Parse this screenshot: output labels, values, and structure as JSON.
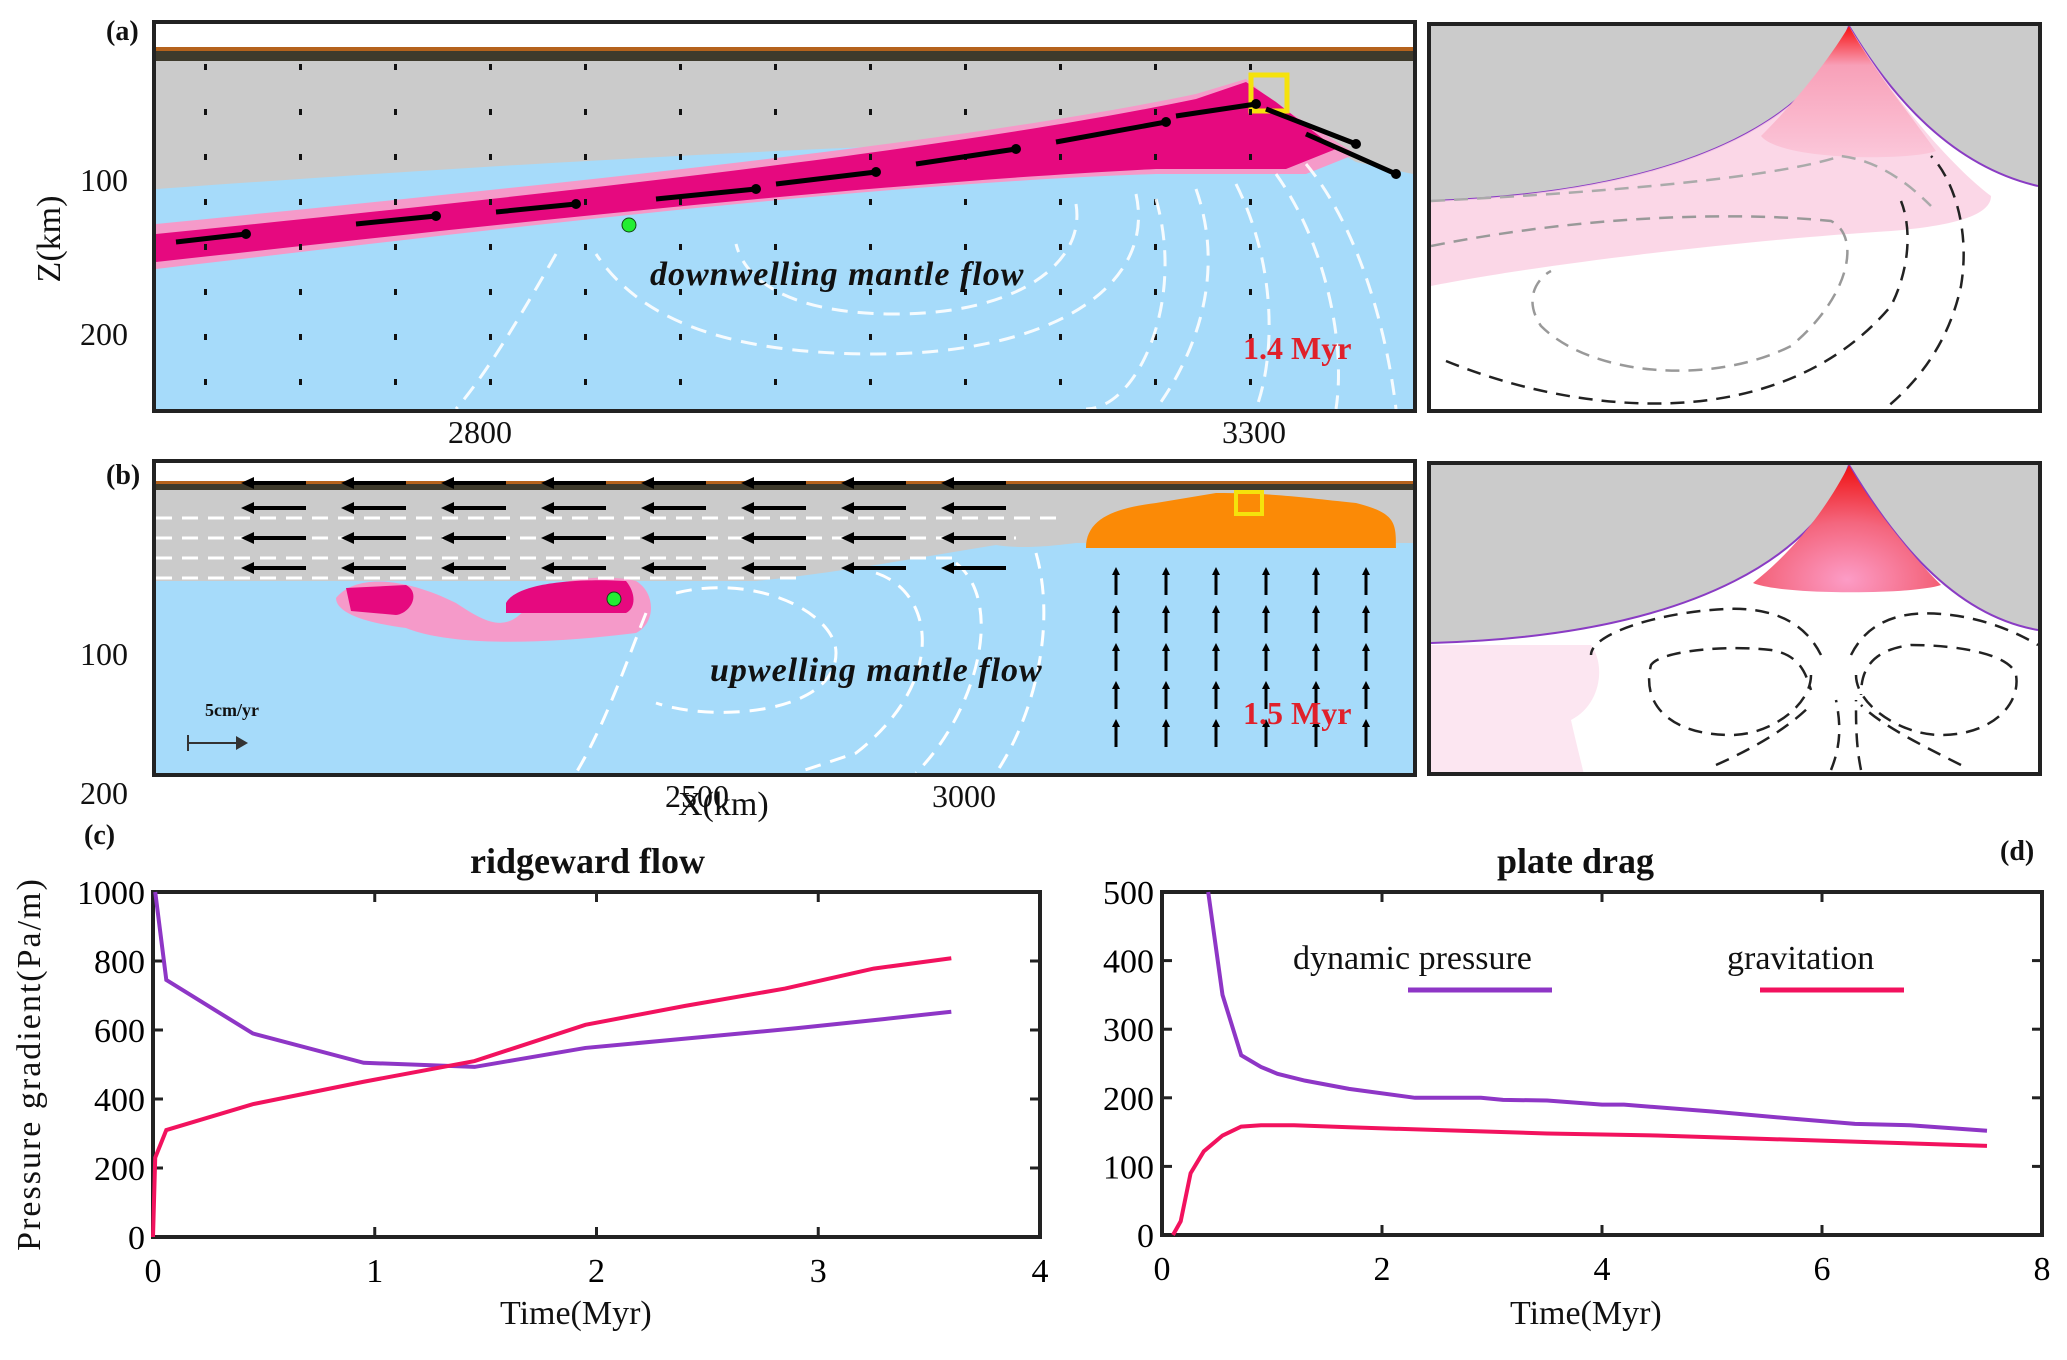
{
  "figure": {
    "panels": {
      "a": {
        "label": "(a)",
        "annotation": "downwelling mantle flow",
        "time": "1.4 Myr",
        "ylabel": "Z(km)",
        "yticks": [
          "100",
          "200"
        ],
        "top_xticks": [
          "2800",
          "3300"
        ]
      },
      "b": {
        "label": "(b)",
        "annotation": "upwelling mantle flow",
        "time": "1.5 Myr",
        "yticks": [
          "100",
          "200"
        ],
        "xticks": [
          "2500",
          "3000"
        ],
        "xlabel": "X(km)",
        "scale_label": "5cm/yr"
      },
      "c": {
        "label": "(c)"
      },
      "d": {
        "label": "(d)"
      }
    },
    "colors": {
      "mantle": "#a6dbfa",
      "lithosphere": "#cbcbcb",
      "crust_dark": "#3e3a2c",
      "crust_brown": "#b5621c",
      "slab": "#e6097f",
      "slab_halo": "#f59ac9",
      "melt_orange": "#fb8a06",
      "marker_green": "#22ee33",
      "highlight_box": "#f5e20c",
      "dynamic_pressure": "#8e36c6",
      "gravitation": "#f2125e",
      "time_label": "#e0202a"
    }
  },
  "chart_data": [
    {
      "type": "line",
      "title": "ridgeward flow",
      "xlabel": "Time(Myr)",
      "ylabel": "Pressure gradient(Pa/m)",
      "xlim": [
        0,
        4
      ],
      "ylim": [
        0,
        1000
      ],
      "xticks": [
        "0",
        "1",
        "2",
        "3",
        "4"
      ],
      "yticks": [
        "0",
        "200",
        "400",
        "600",
        "800",
        "1000"
      ],
      "grid": false,
      "series": [
        {
          "name": "dynamic pressure",
          "color": "#8e36c6",
          "x": [
            0.01,
            0.06,
            0.45,
            0.95,
            1.45,
            1.65,
            1.95,
            2.4,
            2.9,
            3.3,
            3.6
          ],
          "y": [
            1000,
            745,
            590,
            505,
            493,
            515,
            548,
            575,
            605,
            632,
            653
          ]
        },
        {
          "name": "gravitation",
          "color": "#f2125e",
          "x": [
            0.0,
            0.01,
            0.06,
            0.45,
            0.95,
            1.45,
            1.95,
            2.4,
            2.85,
            3.25,
            3.6
          ],
          "y": [
            0,
            230,
            310,
            385,
            450,
            510,
            615,
            670,
            720,
            778,
            808
          ]
        }
      ]
    },
    {
      "type": "line",
      "title": "plate drag",
      "xlabel": "Time(Myr)",
      "ylabel": "",
      "xlim": [
        0,
        8
      ],
      "ylim": [
        0,
        500
      ],
      "xticks": [
        "0",
        "2",
        "4",
        "6",
        "8"
      ],
      "yticks": [
        "0",
        "100",
        "200",
        "300",
        "400",
        "500"
      ],
      "grid": false,
      "legend": {
        "placement": "top-center",
        "entries": [
          "dynamic pressure",
          "gravitation"
        ]
      },
      "series": [
        {
          "name": "dynamic pressure",
          "color": "#8e36c6",
          "x": [
            0.42,
            0.55,
            0.72,
            0.9,
            1.05,
            1.3,
            1.7,
            2.3,
            2.9,
            3.1,
            3.5,
            4.0,
            4.2,
            5.0,
            5.7,
            6.3,
            6.8,
            7.5
          ],
          "y": [
            500,
            350,
            262,
            245,
            235,
            225,
            213,
            200,
            200,
            197,
            196,
            190,
            190,
            180,
            170,
            162,
            160,
            152
          ]
        },
        {
          "name": "gravitation",
          "color": "#f2125e",
          "x": [
            0.1,
            0.17,
            0.26,
            0.38,
            0.55,
            0.72,
            0.9,
            1.2,
            1.7,
            2.5,
            3.5,
            4.5,
            5.5,
            6.5,
            7.5
          ],
          "y": [
            0,
            20,
            90,
            122,
            145,
            158,
            160,
            160,
            157,
            153,
            148,
            145,
            140,
            135,
            130
          ]
        }
      ]
    }
  ]
}
